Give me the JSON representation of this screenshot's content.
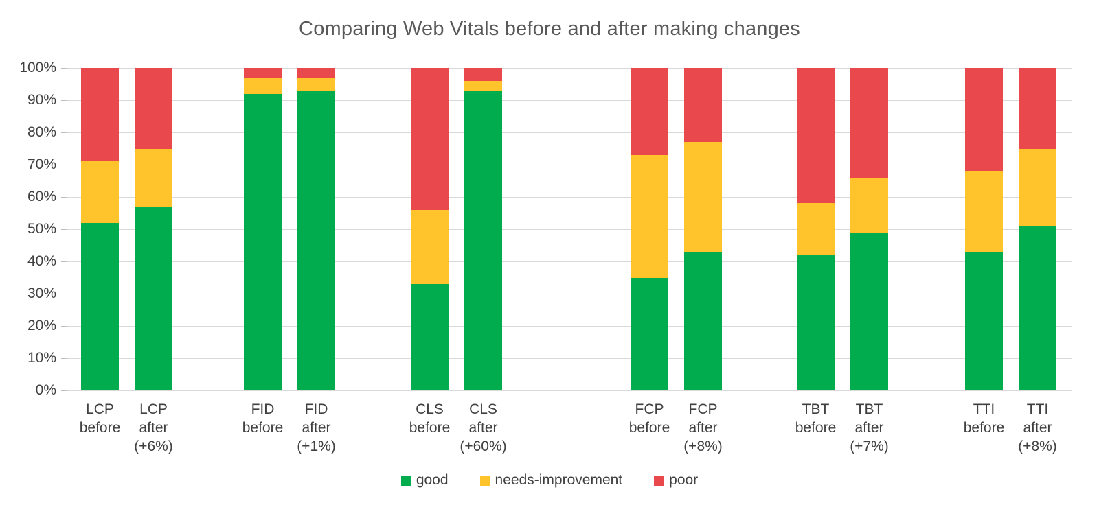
{
  "title": "Comparing Web Vitals before and after making changes",
  "colors": {
    "good": "#00ac4e",
    "needs_improvement": "#ffc32c",
    "poor": "#e9494d",
    "gridline": "#d9d9d9",
    "title_text": "#595959",
    "axis_text": "#404040"
  },
  "y_axis": {
    "tick_labels": [
      "100%",
      "90%",
      "80%",
      "70%",
      "60%",
      "50%",
      "40%",
      "30%",
      "20%",
      "10%",
      "0%"
    ],
    "min": 0,
    "max": 100,
    "step": 10
  },
  "legend": [
    {
      "label": "good",
      "color": "#00ac4e"
    },
    {
      "label": "needs-improvement",
      "color": "#ffc32c"
    },
    {
      "label": "poor",
      "color": "#e9494d"
    }
  ],
  "chart_data": {
    "type": "bar",
    "stacked": true,
    "units": "percent",
    "title": "Comparing Web Vitals before and after making changes",
    "categories": [
      "LCP before",
      "LCP after (+6%)",
      "FID before",
      "FID after (+1%)",
      "CLS before",
      "CLS after (+60%)",
      "FCP before",
      "FCP after (+8%)",
      "TBT before",
      "TBT after (+7%)",
      "TTI before",
      "TTI after (+8%)"
    ],
    "categories_lines": [
      [
        "LCP",
        "before"
      ],
      [
        "LCP",
        "after",
        "(+6%)"
      ],
      [
        "FID",
        "before"
      ],
      [
        "FID",
        "after",
        "(+1%)"
      ],
      [
        "CLS",
        "before"
      ],
      [
        "CLS",
        "after",
        "(+60%)"
      ],
      [
        "FCP",
        "before"
      ],
      [
        "FCP",
        "after",
        "(+8%)"
      ],
      [
        "TBT",
        "before"
      ],
      [
        "TBT",
        "after",
        "(+7%)"
      ],
      [
        "TTI",
        "before"
      ],
      [
        "TTI",
        "after",
        "(+8%)"
      ]
    ],
    "series": [
      {
        "name": "good",
        "color": "#00ac4e",
        "values": [
          52,
          57,
          92,
          93,
          33,
          93,
          35,
          43,
          42,
          49,
          43,
          51
        ]
      },
      {
        "name": "needs-improvement",
        "color": "#ffc32c",
        "values": [
          19,
          18,
          5,
          4,
          23,
          3,
          38,
          34,
          16,
          17,
          25,
          24
        ]
      },
      {
        "name": "poor",
        "color": "#e9494d",
        "values": [
          29,
          25,
          3,
          3,
          44,
          4,
          27,
          23,
          42,
          34,
          32,
          25
        ]
      }
    ],
    "ylim": [
      0,
      100
    ],
    "grid": true,
    "legend_position": "bottom"
  }
}
